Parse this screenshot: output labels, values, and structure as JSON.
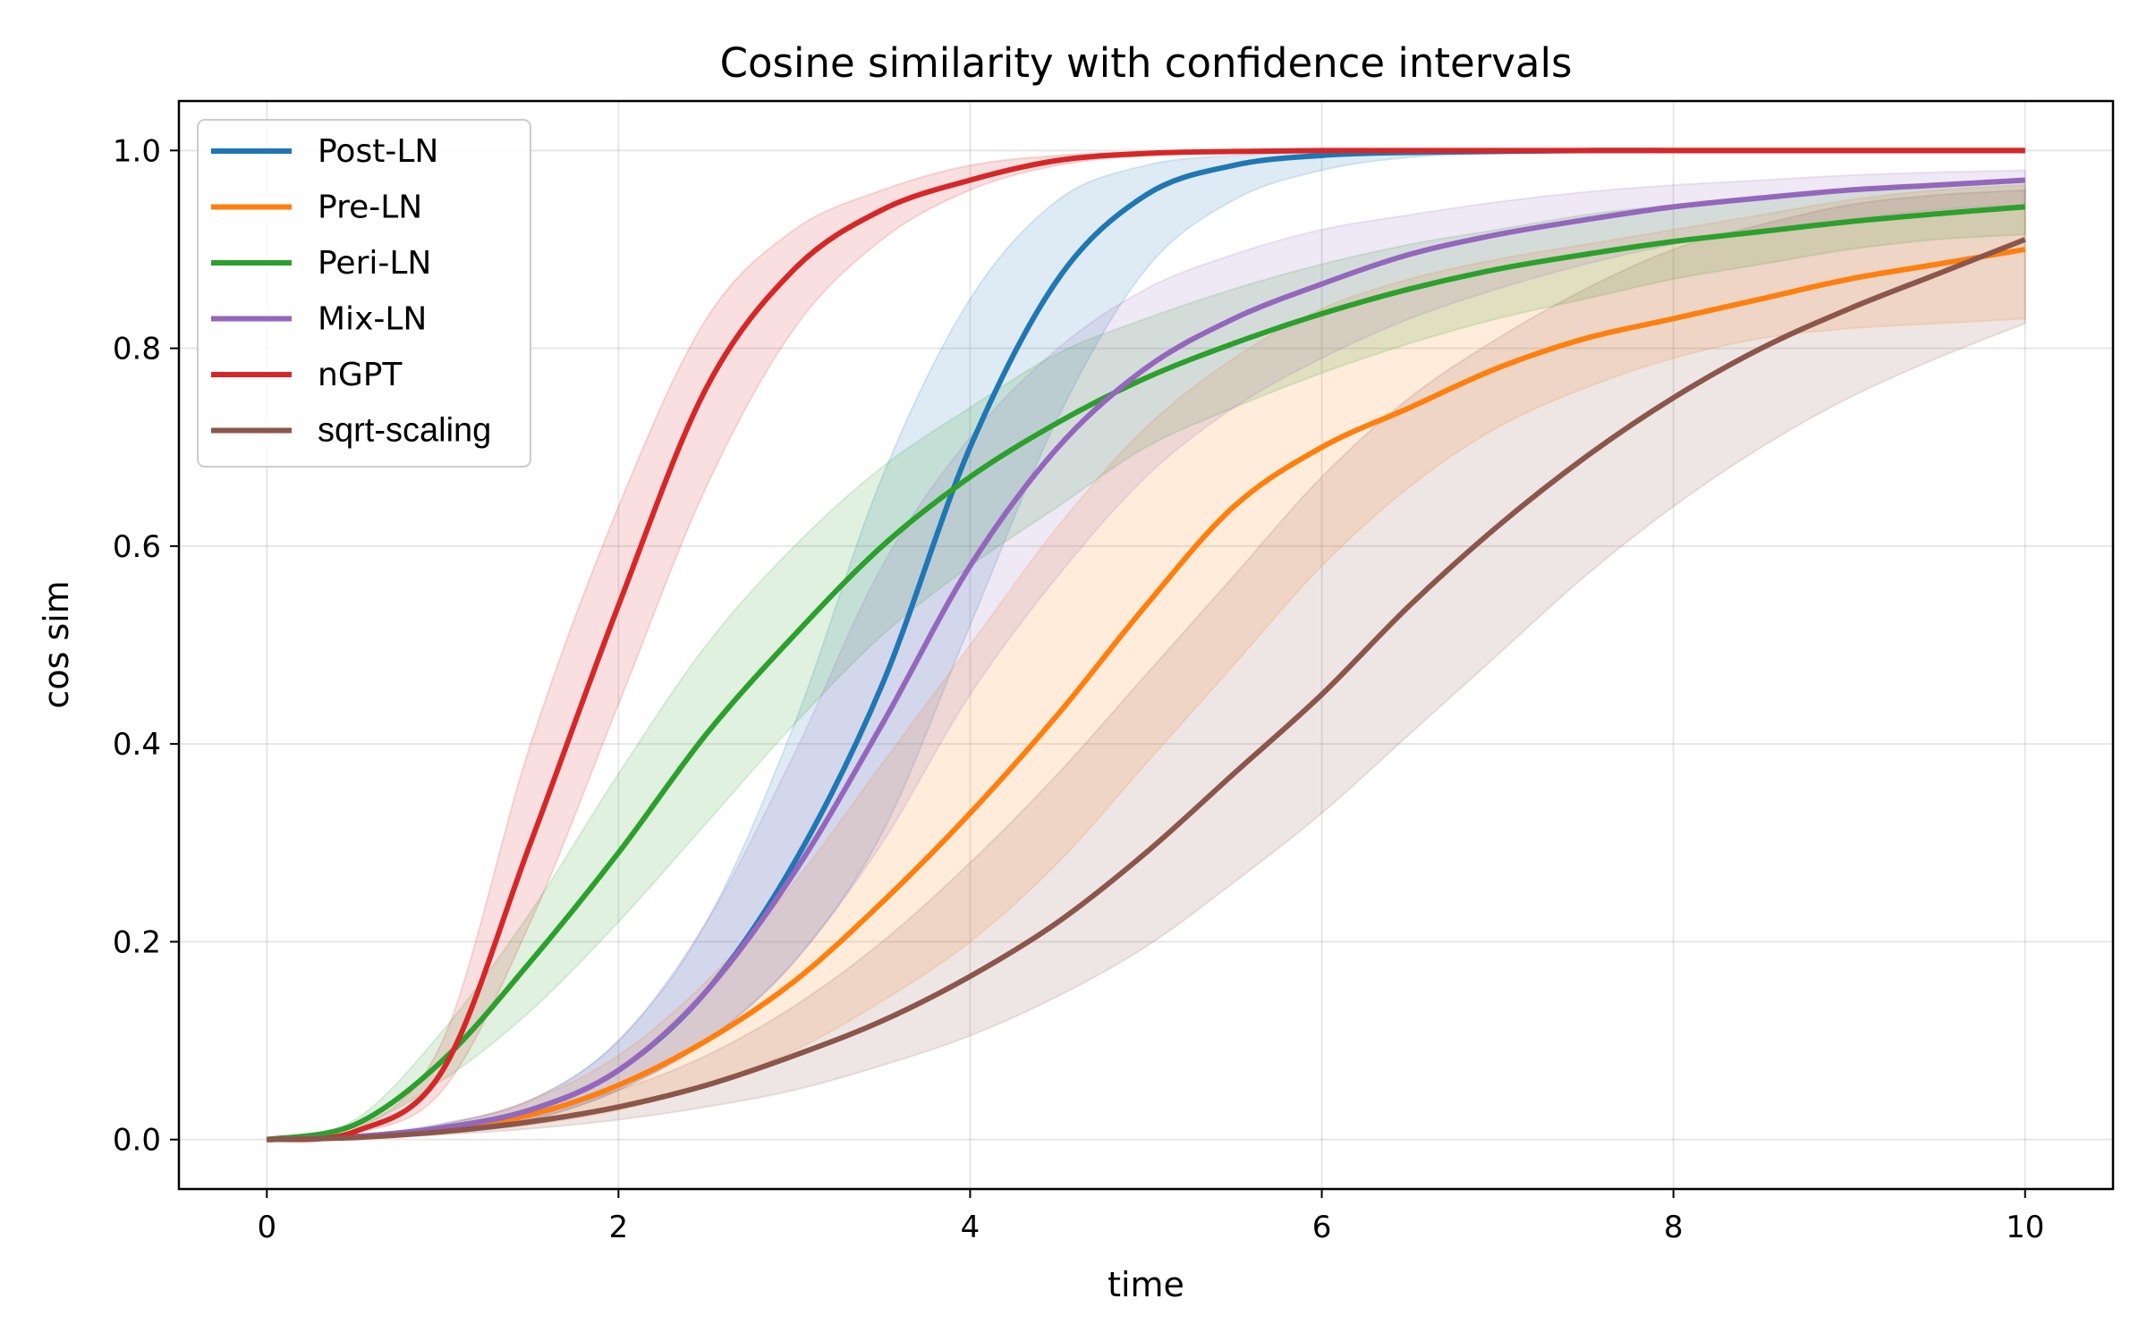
{
  "chart_data": {
    "type": "line",
    "title": "Cosine similarity with confidence intervals",
    "xlabel": "time",
    "ylabel": "cos sim",
    "xlim": [
      -0.5,
      10.5
    ],
    "ylim": [
      -0.05,
      1.05
    ],
    "xticks": [
      0,
      2,
      4,
      6,
      8,
      10
    ],
    "xtick_labels": [
      "0",
      "2",
      "4",
      "6",
      "8",
      "10"
    ],
    "yticks": [
      0.0,
      0.2,
      0.4,
      0.6,
      0.8,
      1.0
    ],
    "ytick_labels": [
      "0.0",
      "0.2",
      "0.4",
      "0.6",
      "0.8",
      "1.0"
    ],
    "grid": true,
    "legend_position": "upper-left",
    "x": [
      0,
      0.5,
      1,
      1.5,
      2,
      2.5,
      3,
      3.5,
      4,
      4.5,
      5,
      5.5,
      6,
      6.5,
      7,
      7.5,
      8,
      8.5,
      9,
      9.5,
      10
    ],
    "series": [
      {
        "name": "Post-LN",
        "color": "#1f77b4",
        "values": [
          0.0,
          0.003,
          0.012,
          0.03,
          0.07,
          0.15,
          0.28,
          0.46,
          0.7,
          0.87,
          0.955,
          0.985,
          0.995,
          0.998,
          0.999,
          1.0,
          1.0,
          1.0,
          1.0,
          1.0,
          1.0
        ],
        "lower": [
          0.0,
          0.002,
          0.008,
          0.02,
          0.05,
          0.1,
          0.18,
          0.31,
          0.52,
          0.73,
          0.88,
          0.95,
          0.98,
          0.993,
          0.997,
          0.999,
          1.0,
          1.0,
          1.0,
          1.0,
          1.0
        ],
        "upper": [
          0.0,
          0.004,
          0.016,
          0.04,
          0.1,
          0.22,
          0.42,
          0.67,
          0.85,
          0.95,
          0.985,
          0.995,
          0.998,
          0.999,
          1.0,
          1.0,
          1.0,
          1.0,
          1.0,
          1.0,
          1.0
        ]
      },
      {
        "name": "Pre-LN",
        "color": "#ff7f0e",
        "values": [
          0.0,
          0.003,
          0.011,
          0.025,
          0.055,
          0.1,
          0.16,
          0.24,
          0.33,
          0.43,
          0.54,
          0.64,
          0.7,
          0.74,
          0.78,
          0.81,
          0.83,
          0.85,
          0.87,
          0.885,
          0.9
        ],
        "lower": [
          0.0,
          0.002,
          0.007,
          0.015,
          0.03,
          0.055,
          0.09,
          0.14,
          0.2,
          0.28,
          0.38,
          0.48,
          0.58,
          0.66,
          0.72,
          0.76,
          0.79,
          0.81,
          0.82,
          0.825,
          0.83
        ],
        "upper": [
          0.0,
          0.004,
          0.015,
          0.04,
          0.085,
          0.16,
          0.26,
          0.38,
          0.5,
          0.62,
          0.72,
          0.79,
          0.84,
          0.87,
          0.89,
          0.905,
          0.92,
          0.935,
          0.95,
          0.96,
          0.965
        ]
      },
      {
        "name": "Peri-LN",
        "color": "#2ca02c",
        "values": [
          0.0,
          0.015,
          0.08,
          0.18,
          0.29,
          0.41,
          0.51,
          0.6,
          0.67,
          0.725,
          0.77,
          0.805,
          0.835,
          0.86,
          0.88,
          0.895,
          0.908,
          0.918,
          0.928,
          0.936,
          0.943
        ],
        "lower": [
          0.0,
          0.012,
          0.06,
          0.13,
          0.22,
          0.32,
          0.42,
          0.51,
          0.58,
          0.64,
          0.7,
          0.74,
          0.775,
          0.805,
          0.83,
          0.85,
          0.87,
          0.885,
          0.9,
          0.91,
          0.915
        ],
        "upper": [
          0.0,
          0.02,
          0.11,
          0.23,
          0.37,
          0.5,
          0.6,
          0.68,
          0.74,
          0.795,
          0.83,
          0.86,
          0.885,
          0.905,
          0.92,
          0.935,
          0.945,
          0.953,
          0.96,
          0.965,
          0.97
        ]
      },
      {
        "name": "Mix-LN",
        "color": "#9467bd",
        "values": [
          0.0,
          0.003,
          0.012,
          0.03,
          0.07,
          0.15,
          0.27,
          0.42,
          0.58,
          0.7,
          0.78,
          0.83,
          0.865,
          0.895,
          0.915,
          0.93,
          0.943,
          0.952,
          0.96,
          0.965,
          0.97
        ],
        "lower": [
          0.0,
          0.002,
          0.008,
          0.02,
          0.05,
          0.1,
          0.18,
          0.3,
          0.45,
          0.57,
          0.67,
          0.74,
          0.79,
          0.83,
          0.86,
          0.885,
          0.905,
          0.92,
          0.93,
          0.94,
          0.945
        ],
        "upper": [
          0.0,
          0.004,
          0.016,
          0.04,
          0.1,
          0.22,
          0.39,
          0.58,
          0.71,
          0.8,
          0.86,
          0.895,
          0.92,
          0.935,
          0.948,
          0.958,
          0.965,
          0.97,
          0.975,
          0.978,
          0.98
        ]
      },
      {
        "name": "nGPT",
        "color": "#d62728",
        "values": [
          0.0,
          0.008,
          0.07,
          0.3,
          0.54,
          0.76,
          0.88,
          0.94,
          0.97,
          0.99,
          0.997,
          0.999,
          1.0,
          1.0,
          1.0,
          1.0,
          1.0,
          1.0,
          1.0,
          1.0,
          1.0
        ],
        "lower": [
          0.0,
          0.006,
          0.05,
          0.22,
          0.44,
          0.66,
          0.82,
          0.91,
          0.96,
          0.985,
          0.995,
          0.998,
          1.0,
          1.0,
          1.0,
          1.0,
          1.0,
          1.0,
          1.0,
          1.0,
          1.0
        ],
        "upper": [
          0.0,
          0.01,
          0.1,
          0.4,
          0.64,
          0.83,
          0.92,
          0.96,
          0.985,
          0.995,
          0.999,
          1.0,
          1.0,
          1.0,
          1.0,
          1.0,
          1.0,
          1.0,
          1.0,
          1.0,
          1.0
        ]
      },
      {
        "name": "sqrt-scaling",
        "color": "#8c564b",
        "values": [
          0.0,
          0.002,
          0.008,
          0.018,
          0.033,
          0.055,
          0.085,
          0.12,
          0.165,
          0.22,
          0.29,
          0.37,
          0.45,
          0.54,
          0.62,
          0.69,
          0.75,
          0.8,
          0.84,
          0.875,
          0.91
        ],
        "lower": [
          0.0,
          0.001,
          0.005,
          0.011,
          0.02,
          0.033,
          0.05,
          0.075,
          0.105,
          0.145,
          0.195,
          0.26,
          0.33,
          0.41,
          0.49,
          0.57,
          0.64,
          0.7,
          0.75,
          0.79,
          0.825
        ],
        "upper": [
          0.0,
          0.003,
          0.012,
          0.028,
          0.05,
          0.085,
          0.135,
          0.2,
          0.28,
          0.37,
          0.47,
          0.57,
          0.67,
          0.75,
          0.81,
          0.86,
          0.9,
          0.925,
          0.945,
          0.955,
          0.96
        ]
      }
    ]
  }
}
